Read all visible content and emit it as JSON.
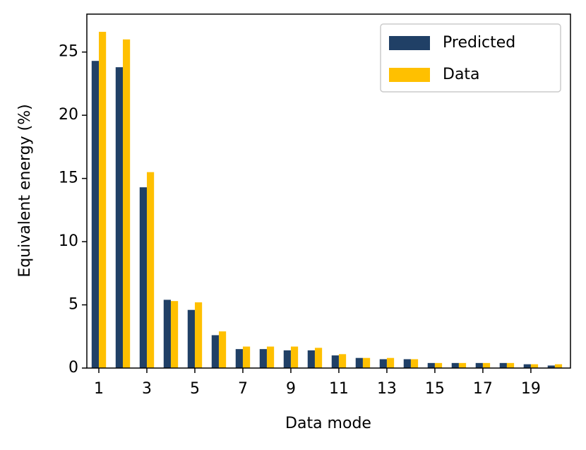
{
  "chart_data": {
    "type": "grouped-bar",
    "x": [
      1,
      2,
      3,
      4,
      5,
      6,
      7,
      8,
      9,
      10,
      11,
      12,
      13,
      14,
      15,
      16,
      17,
      18,
      19,
      20
    ],
    "series": [
      {
        "name": "Predicted",
        "color": "#204066",
        "values": [
          24.3,
          23.8,
          14.3,
          5.4,
          4.6,
          2.6,
          1.5,
          1.5,
          1.4,
          1.4,
          1.0,
          0.8,
          0.7,
          0.7,
          0.4,
          0.4,
          0.4,
          0.4,
          0.3,
          0.2
        ]
      },
      {
        "name": "Data",
        "color": "#ffc000",
        "values": [
          26.6,
          26.0,
          15.5,
          5.3,
          5.2,
          2.9,
          1.7,
          1.7,
          1.7,
          1.6,
          1.1,
          0.8,
          0.8,
          0.7,
          0.4,
          0.4,
          0.4,
          0.4,
          0.3,
          0.3
        ]
      }
    ],
    "x_label": "Data mode",
    "y_label": "Equivalent energy (%)",
    "xlim": [
      0.5,
      20.65
    ],
    "xticks": [
      1,
      3,
      5,
      7,
      9,
      11,
      13,
      15,
      17,
      19
    ],
    "ylim": [
      0,
      28
    ],
    "yticks": [
      0,
      5,
      10,
      15,
      20,
      25
    ],
    "legend": "upper right"
  }
}
